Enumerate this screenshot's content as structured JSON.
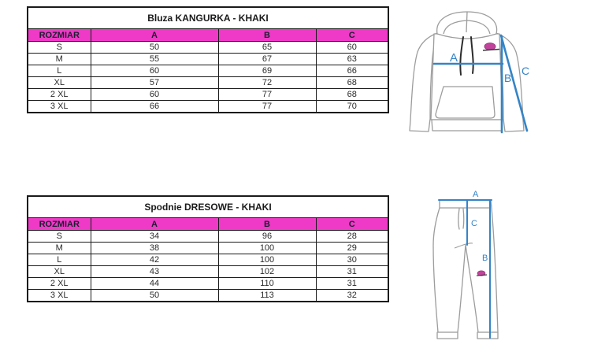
{
  "page": {
    "background": "#ffffff"
  },
  "colors": {
    "header_bg": "#ee3ac6",
    "table_border": "#1b1b1b",
    "measure_line_blue": "#3584c6",
    "garment_outline_gray": "#9c9c9c",
    "logo_pink": "#c2439c"
  },
  "tables": [
    {
      "title": "Bluza KANGURKA - KHAKI",
      "headers": [
        "ROZMIAR",
        "A",
        "B",
        "C"
      ],
      "rows": [
        [
          "S",
          "50",
          "65",
          "60"
        ],
        [
          "M",
          "55",
          "67",
          "63"
        ],
        [
          "L",
          "60",
          "69",
          "66"
        ],
        [
          "XL",
          "57",
          "72",
          "68"
        ],
        [
          "2 XL",
          "60",
          "77",
          "68"
        ],
        [
          "3 XL",
          "66",
          "77",
          "70"
        ]
      ]
    },
    {
      "title": "Spodnie DRESOWE - KHAKI",
      "headers": [
        "ROZMIAR",
        "A",
        "B",
        "C"
      ],
      "rows": [
        [
          "S",
          "34",
          "96",
          "28"
        ],
        [
          "M",
          "38",
          "100",
          "29"
        ],
        [
          "L",
          "42",
          "100",
          "30"
        ],
        [
          "XL",
          "43",
          "102",
          "31"
        ],
        [
          "2 XL",
          "44",
          "110",
          "31"
        ],
        [
          "3 XL",
          "50",
          "113",
          "32"
        ]
      ]
    }
  ],
  "diagrams": {
    "hoodie": {
      "labels": {
        "a": "A",
        "b": "B",
        "c": "C"
      }
    },
    "pants": {
      "labels": {
        "a": "A",
        "b": "B",
        "c": "C"
      }
    }
  }
}
